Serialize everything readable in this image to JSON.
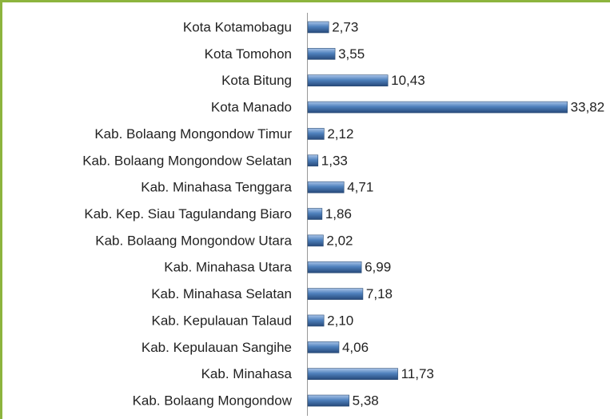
{
  "chart_data": {
    "type": "bar",
    "orientation": "horizontal",
    "categories": [
      "Kota Kotamobagu",
      "Kota Tomohon",
      "Kota Bitung",
      "Kota Manado",
      "Kab. Bolaang Mongondow Timur",
      "Kab. Bolaang Mongondow Selatan",
      "Kab. Minahasa Tenggara",
      "Kab. Kep. Siau Tagulandang Biaro",
      "Kab. Bolaang Mongondow Utara",
      "Kab. Minahasa Utara",
      "Kab. Minahasa Selatan",
      "Kab. Kepulauan Talaud",
      "Kab. Kepulauan Sangihe",
      "Kab. Minahasa",
      "Kab. Bolaang Mongondow"
    ],
    "values": [
      2.73,
      3.55,
      10.43,
      33.82,
      2.12,
      1.33,
      4.71,
      1.86,
      2.02,
      6.99,
      7.18,
      2.1,
      4.06,
      11.73,
      5.38
    ],
    "value_labels": [
      "2,73",
      "3,55",
      "10,43",
      "33,82",
      "2,12",
      "1,33",
      "4,71",
      "1,86",
      "2,02",
      "6,99",
      "7,18",
      "2,10",
      "4,06",
      "11,73",
      "5,38"
    ],
    "color": "#4f81bd",
    "xlim": [
      0,
      40
    ]
  }
}
